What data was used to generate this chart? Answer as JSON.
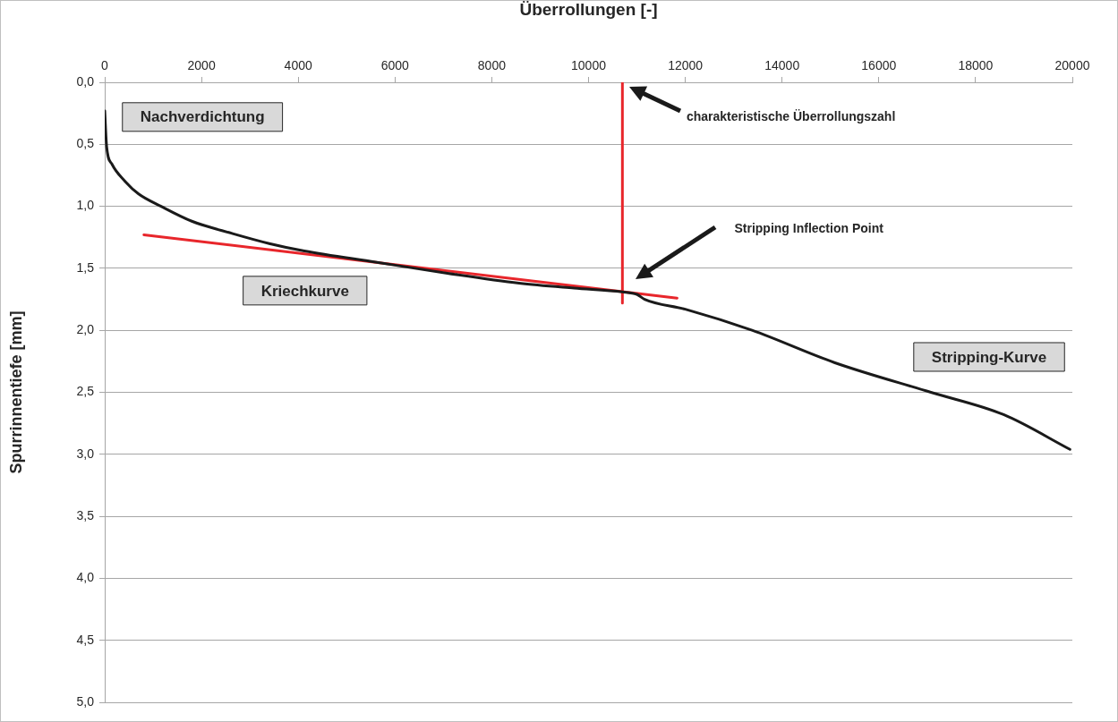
{
  "chart_data": {
    "type": "line",
    "xlabel": "Überrollungen [-]",
    "ylabel": "Spurrinnentiefe [mm]",
    "xlim": [
      0,
      20000
    ],
    "xticks": [
      0,
      2000,
      4000,
      6000,
      8000,
      10000,
      12000,
      14000,
      16000,
      18000,
      20000
    ],
    "ylim": [
      5,
      0
    ],
    "yticks": [
      {
        "value": 0,
        "label": "0,0"
      },
      {
        "value": 0.5,
        "label": "0,5"
      },
      {
        "value": 1,
        "label": "1,0"
      },
      {
        "value": 1.5,
        "label": "1,5"
      },
      {
        "value": 2,
        "label": "2,0"
      },
      {
        "value": 2.5,
        "label": "2,5"
      },
      {
        "value": 3,
        "label": "3,0"
      },
      {
        "value": 3.5,
        "label": "3,5"
      },
      {
        "value": 4,
        "label": "4,0"
      },
      {
        "value": 4.5,
        "label": "4,5"
      },
      {
        "value": 5,
        "label": "5,0"
      }
    ],
    "grid": "y",
    "marker": "none",
    "line_style": "solid",
    "series": [
      {
        "color": "#1a1a1a",
        "x": [
          0,
          40,
          150,
          425,
          700,
          1165,
          1800,
          2645,
          3400,
          4125,
          5600,
          7085,
          8565,
          9700,
          10700,
          11000,
          11160,
          12000,
          13380,
          15080,
          17077,
          18580,
          19950
        ],
        "values": [
          0.23,
          0.52,
          0.66,
          0.8,
          0.9,
          1.0,
          1.12,
          1.22,
          1.3,
          1.36,
          1.45,
          1.54,
          1.62,
          1.66,
          1.69,
          1.71,
          1.75,
          1.83,
          2.0,
          2.26,
          2.5,
          2.68,
          2.96
        ]
      },
      {
        "color": "#e8262b",
        "x": [
          810,
          11830
        ],
        "values": [
          1.23,
          1.74
        ]
      },
      {
        "color": "#e8262b",
        "x": [
          10700,
          10700
        ],
        "values": [
          0,
          1.78
        ]
      }
    ],
    "annotations": [
      "Nachverdichtung",
      "Kriechkurve",
      "Stripping-Kurve",
      "charakteristische Überrollungszahl",
      "Stripping Inflection Point"
    ]
  }
}
